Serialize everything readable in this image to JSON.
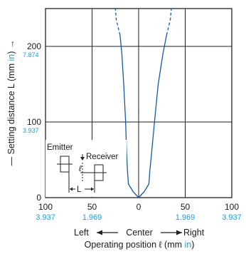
{
  "chart_data": {
    "type": "line",
    "title": "",
    "xlabel_parts": [
      "Operating position ℓ (mm ",
      "in",
      ")"
    ],
    "ylabel_parts": [
      "— Setting distance L (mm ",
      "in",
      ") →"
    ],
    "direction_labels": {
      "left": "Left",
      "center": "Center",
      "right": "Right"
    },
    "xlim": [
      -100,
      100
    ],
    "ylim": [
      0,
      250
    ],
    "grid": true,
    "x_ticks": [
      {
        "value": -100,
        "mm": "100",
        "inch": "3.937"
      },
      {
        "value": -50,
        "mm": "50",
        "inch": "1.969"
      },
      {
        "value": 0,
        "mm": "0",
        "inch": ""
      },
      {
        "value": 50,
        "mm": "50",
        "inch": "1.969"
      },
      {
        "value": 100,
        "mm": "100",
        "inch": "3.937"
      }
    ],
    "y_ticks": [
      {
        "value": 0,
        "mm": "0",
        "inch": ""
      },
      {
        "value": 100,
        "mm": "100",
        "inch": "3.937"
      },
      {
        "value": 200,
        "mm": "200",
        "inch": "7.874"
      }
    ],
    "series": [
      {
        "solid_points": [
          [
            0,
            0
          ],
          [
            -6,
            8
          ],
          [
            -11,
            18
          ],
          [
            -12,
            35
          ],
          [
            -13,
            60
          ],
          [
            -14,
            100
          ],
          [
            -16,
            150
          ],
          [
            -18,
            190
          ],
          [
            -20,
            215
          ]
        ],
        "dashed_points": [
          [
            -20,
            215
          ],
          [
            -24,
            235
          ],
          [
            -25,
            250
          ]
        ]
      },
      {
        "solid_points": [
          [
            0,
            0
          ],
          [
            6,
            8
          ],
          [
            11,
            18
          ],
          [
            12,
            35
          ],
          [
            14,
            60
          ],
          [
            17,
            100
          ],
          [
            21,
            150
          ],
          [
            26,
            190
          ],
          [
            30,
            215
          ]
        ],
        "dashed_points": [
          [
            30,
            215
          ],
          [
            34,
            235
          ],
          [
            35,
            250
          ]
        ]
      }
    ],
    "center_line": {
      "x": 0,
      "dashes": [
        [
          113,
          117
        ],
        [
          200,
          205
        ]
      ]
    },
    "inset": {
      "emitter": "Emitter",
      "receiver": "Receiver",
      "l_symbol": "ℓ",
      "L_symbol": "L"
    },
    "colors": {
      "curve": "#1557a8",
      "inch": "#1e9fd8",
      "grid": "#222222"
    }
  }
}
